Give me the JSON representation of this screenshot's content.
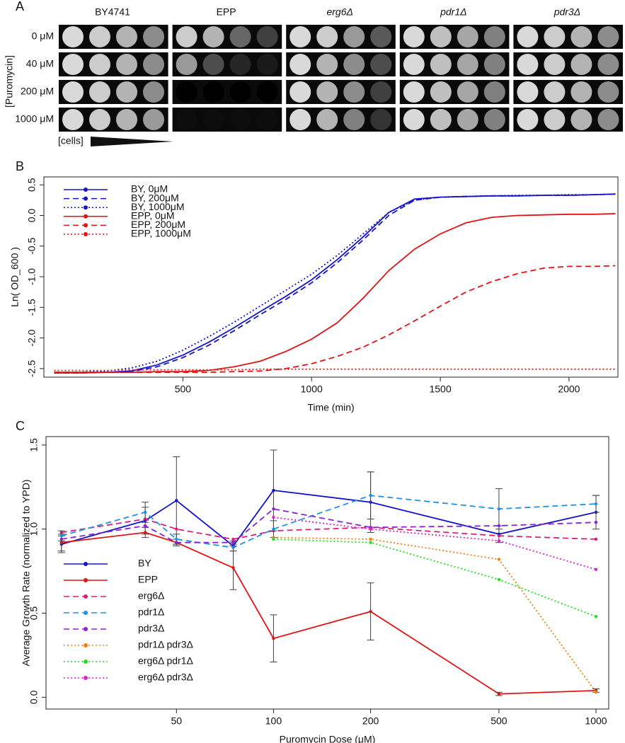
{
  "panel_a": {
    "label": "A",
    "columns": [
      "BY4741",
      "EPP",
      "erg6Δ",
      "pdr1Δ",
      "pdr3Δ"
    ],
    "italic": [
      false,
      false,
      true,
      true,
      true
    ],
    "rows": [
      "0 μM",
      "40 μM",
      "200 μM",
      "1000 μM"
    ],
    "axis_label": "[Puromycin]",
    "cells_label": "[cells]",
    "spots": [
      [
        [
          0.85,
          0.8,
          0.7,
          0.55
        ],
        [
          0.85,
          0.8,
          0.7,
          0.55
        ],
        [
          0.85,
          0.8,
          0.7,
          0.55
        ],
        [
          0.85,
          0.8,
          0.7,
          0.6
        ]
      ],
      [
        [
          0.8,
          0.7,
          0.4,
          0.25
        ],
        [
          0.6,
          0.3,
          0.15,
          0.1
        ],
        [
          0,
          0,
          0,
          0
        ],
        [
          0.05,
          0.05,
          0.05,
          0.05
        ]
      ],
      [
        [
          0.85,
          0.8,
          0.6,
          0.35
        ],
        [
          0.85,
          0.7,
          0.55,
          0.3
        ],
        [
          0.85,
          0.7,
          0.55,
          0.25
        ],
        [
          0.85,
          0.7,
          0.5,
          0.2
        ]
      ],
      [
        [
          0.85,
          0.75,
          0.65,
          0.5
        ],
        [
          0.85,
          0.75,
          0.65,
          0.5
        ],
        [
          0.85,
          0.75,
          0.65,
          0.5
        ],
        [
          0.85,
          0.75,
          0.65,
          0.5
        ]
      ],
      [
        [
          0.85,
          0.8,
          0.7,
          0.55
        ],
        [
          0.85,
          0.8,
          0.7,
          0.55
        ],
        [
          0.85,
          0.8,
          0.7,
          0.55
        ],
        [
          0.85,
          0.8,
          0.7,
          0.55
        ]
      ]
    ]
  },
  "chart_data": [
    {
      "type": "line",
      "label": "B",
      "ylabel": "Ln( OD_600 )",
      "xlabel": "Time (min)",
      "xlim": [
        -40,
        2190
      ],
      "xticks": [
        500,
        1000,
        1500,
        2000
      ],
      "ylim": [
        -2.64,
        0.63
      ],
      "yticks": [
        0.5,
        {
          "value": 0,
          "label": "0.0"
        },
        -0.5,
        {
          "value": -1,
          "label": "-1.0"
        },
        -1.5,
        {
          "value": -2,
          "label": "-2.0"
        },
        -2.5
      ],
      "legend": "top-left",
      "markers": false,
      "x": [
        0,
        100,
        200,
        300,
        400,
        500,
        600,
        700,
        800,
        900,
        1000,
        1100,
        1200,
        1300,
        1400,
        1500,
        1600,
        1700,
        1800,
        1900,
        2000,
        2100,
        2180
      ],
      "series": [
        {
          "name": "BY, 0μM",
          "color": "#1414c8",
          "dash": "solid",
          "values": [
            -2.57,
            -2.57,
            -2.56,
            -2.54,
            -2.44,
            -2.28,
            -2.07,
            -1.83,
            -1.57,
            -1.32,
            -1.05,
            -0.72,
            -0.35,
            0.05,
            0.27,
            0.3,
            0.31,
            0.32,
            0.32,
            0.33,
            0.33,
            0.34,
            0.35
          ]
        },
        {
          "name": "BY, 200μM",
          "color": "#1414c8",
          "dash": "dashed",
          "values": [
            -2.57,
            -2.57,
            -2.56,
            -2.55,
            -2.47,
            -2.32,
            -2.12,
            -1.88,
            -1.62,
            -1.37,
            -1.1,
            -0.77,
            -0.4,
            0.0,
            0.25,
            0.3,
            0.31,
            0.32,
            0.32,
            0.33,
            0.33,
            0.34,
            0.35
          ]
        },
        {
          "name": "BY, 1000μM",
          "color": "#1414c8",
          "dash": "dotted",
          "values": [
            -2.57,
            -2.56,
            -2.54,
            -2.49,
            -2.38,
            -2.2,
            -1.98,
            -1.74,
            -1.48,
            -1.22,
            -0.96,
            -0.65,
            -0.3,
            0.05,
            0.25,
            0.3,
            0.31,
            0.32,
            0.33,
            0.33,
            0.34,
            0.34,
            0.35
          ]
        },
        {
          "name": "EPP, 0μM",
          "color": "#e01414",
          "dash": "solid",
          "values": [
            -2.56,
            -2.56,
            -2.56,
            -2.56,
            -2.55,
            -2.55,
            -2.53,
            -2.47,
            -2.38,
            -2.22,
            -2.02,
            -1.75,
            -1.35,
            -0.9,
            -0.55,
            -0.3,
            -0.12,
            -0.03,
            0.0,
            0.01,
            0.02,
            0.02,
            0.03
          ]
        },
        {
          "name": "EPP, 200μM",
          "color": "#e01414",
          "dash": "dashed",
          "values": [
            -2.56,
            -2.56,
            -2.56,
            -2.56,
            -2.56,
            -2.56,
            -2.56,
            -2.55,
            -2.54,
            -2.5,
            -2.42,
            -2.3,
            -2.15,
            -1.95,
            -1.72,
            -1.48,
            -1.25,
            -1.08,
            -0.95,
            -0.86,
            -0.83,
            -0.83,
            -0.82
          ]
        },
        {
          "name": "EPP, 1000μM",
          "color": "#e01414",
          "dash": "dotted",
          "values": [
            -2.53,
            -2.53,
            -2.53,
            -2.52,
            -2.52,
            -2.52,
            -2.52,
            -2.52,
            -2.51,
            -2.51,
            -2.51,
            -2.51,
            -2.51,
            -2.51,
            -2.51,
            -2.51,
            -2.51,
            -2.51,
            -2.51,
            -2.51,
            -2.51,
            -2.51,
            -2.51
          ]
        }
      ]
    },
    {
      "type": "line",
      "label": "C",
      "ylabel": "Average Growth Rate (normalized to YPD)",
      "xlabel": "Puromycin Dose (μM)",
      "log_x": true,
      "xlim": [
        19.7,
        1095
      ],
      "xticks": [
        50,
        100,
        200,
        500,
        1000
      ],
      "ylim": [
        -0.07,
        1.55
      ],
      "yticks": [
        {
          "value": 0,
          "label": "0.0"
        },
        0.5,
        {
          "value": 1,
          "label": "1.0"
        },
        1.5
      ],
      "legend": "bottom-left",
      "markers": true,
      "x": [
        22,
        40,
        50,
        75,
        100,
        200,
        500,
        1000
      ],
      "series": [
        {
          "name": "BY",
          "color": "#1414c8",
          "dash": "solid",
          "values": [
            0.91,
            1.05,
            1.17,
            0.9,
            1.23,
            1.16,
            0.97,
            1.1
          ],
          "errors": [
            0.05,
            0.08,
            0.26,
            0.03,
            0.24,
            0.18,
            0.05,
            0.1
          ]
        },
        {
          "name": "EPP",
          "color": "#e01414",
          "dash": "solid",
          "values": [
            0.92,
            0.98,
            0.92,
            0.77,
            0.35,
            0.51,
            0.02,
            0.04
          ],
          "errors": [
            0.05,
            0.03,
            0.02,
            0.13,
            0.14,
            0.17,
            0.01,
            0.01
          ]
        },
        {
          "name": "erg6Δ",
          "color": "#d8207a",
          "dash": "dashed",
          "values": [
            0.98,
            1.06,
            1.0,
            0.94,
            0.99,
            1.01,
            0.96,
            0.94
          ]
        },
        {
          "name": "pdr1Δ",
          "color": "#2090e0",
          "dash": "dashed",
          "values": [
            0.96,
            1.1,
            0.94,
            0.89,
            1.0,
            1.2,
            1.12,
            1.15
          ],
          "errors": [
            0.03,
            0.06,
            0.03,
            0.02,
            0.05,
            0.14,
            0.12,
            0.05
          ]
        },
        {
          "name": "pdr3Δ",
          "color": "#8a22d0",
          "dash": "dashed",
          "values": [
            0.94,
            1.02,
            0.92,
            0.92,
            1.12,
            1.01,
            1.02,
            1.04
          ]
        },
        {
          "name": "pdr1Δ pdr3Δ",
          "color": "#f08010",
          "dash": "dotted",
          "values": [
            null,
            null,
            null,
            null,
            0.95,
            0.94,
            0.82,
            0.03
          ]
        },
        {
          "name": "erg6Δ pdr1Δ",
          "color": "#20e020",
          "dash": "dotted",
          "values": [
            null,
            null,
            null,
            null,
            0.94,
            0.92,
            0.7,
            0.48
          ]
        },
        {
          "name": "erg6Δ pdr3Δ",
          "color": "#e020d0",
          "dash": "dotted",
          "values": [
            null,
            null,
            null,
            null,
            1.07,
            1.0,
            0.93,
            0.76
          ]
        }
      ]
    }
  ]
}
